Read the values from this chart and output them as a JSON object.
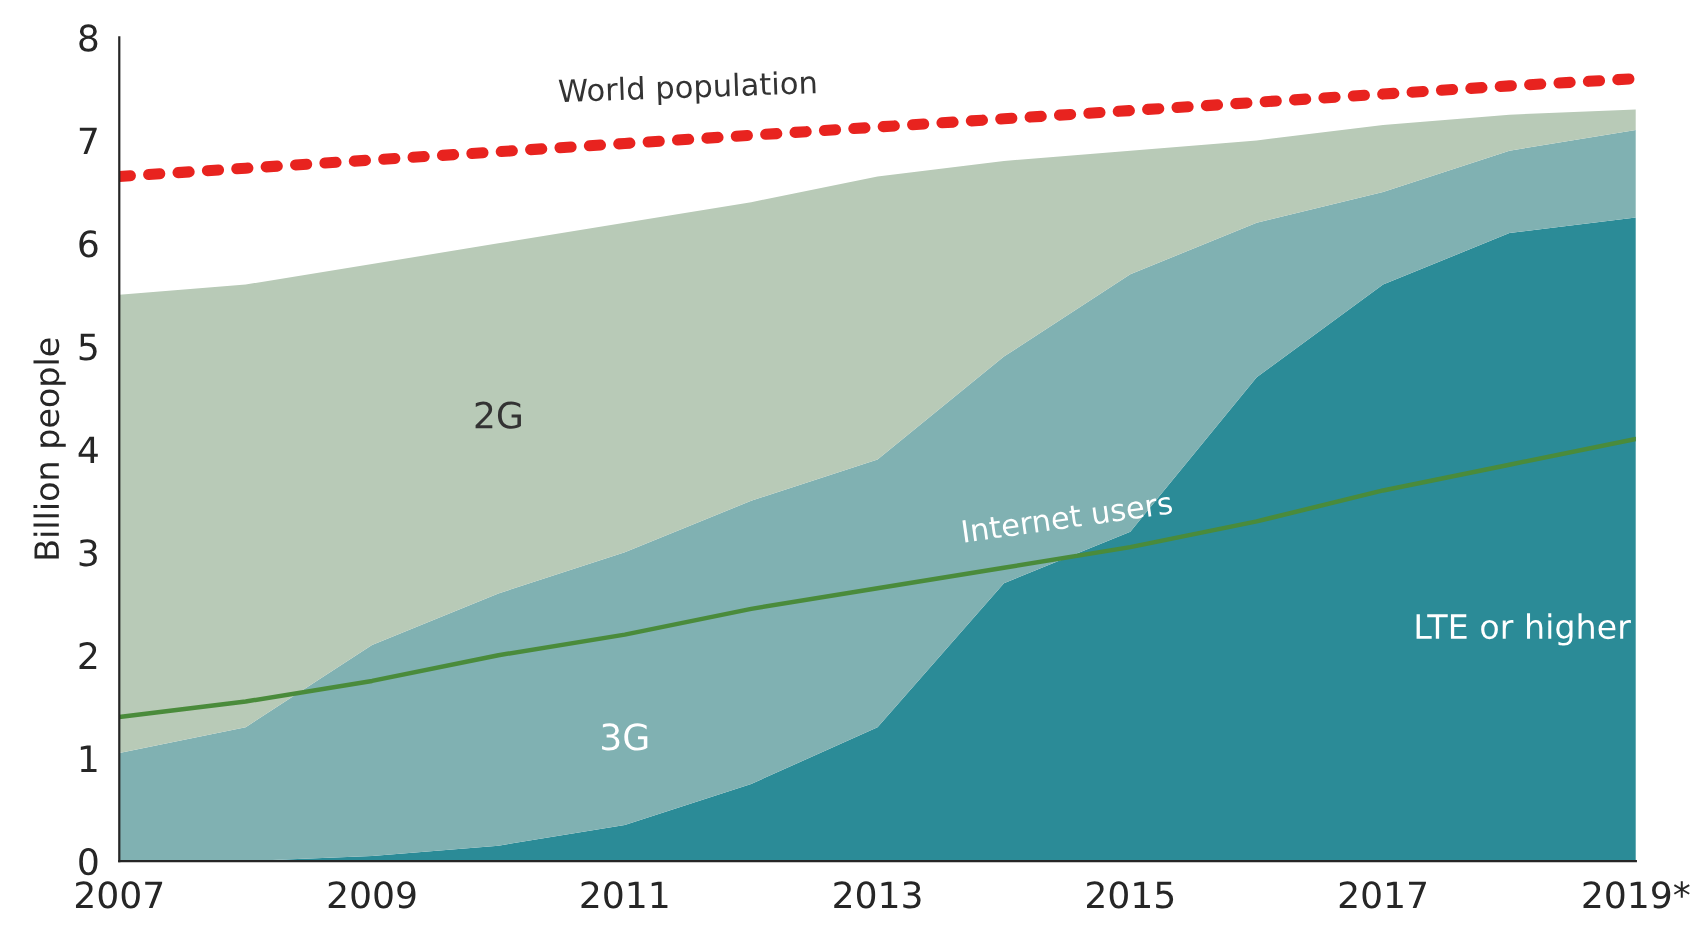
{
  "chart_data": {
    "type": "area",
    "stacked": true,
    "ylabel": "Billion people",
    "x": [
      2007,
      2008,
      2009,
      2010,
      2011,
      2012,
      2013,
      2014,
      2015,
      2016,
      2017,
      2018,
      2019
    ],
    "xlim": [
      2007,
      2019
    ],
    "xticks": [
      2007,
      2009,
      2011,
      2013,
      2015,
      2017,
      {
        "value": 2019,
        "label": "2019*"
      }
    ],
    "ylim": [
      0,
      8
    ],
    "yticks": [
      0,
      1,
      2,
      3,
      4,
      5,
      6,
      7,
      8
    ],
    "series": [
      {
        "name": "LTE or higher",
        "color": "#2b8b97",
        "values": [
          0,
          0,
          0.05,
          0.15,
          0.35,
          0.75,
          1.3,
          2.7,
          3.2,
          4.7,
          5.6,
          6.1,
          6.25
        ]
      },
      {
        "name": "3G",
        "color": "#80b1b2",
        "values": [
          1.05,
          1.3,
          2.05,
          2.45,
          2.65,
          2.75,
          2.6,
          2.2,
          2.5,
          1.5,
          0.9,
          0.8,
          0.85
        ]
      },
      {
        "name": "2G",
        "color": "#b8cab7",
        "values": [
          4.45,
          4.3,
          3.7,
          3.4,
          3.2,
          2.9,
          2.75,
          1.9,
          1.2,
          0.8,
          0.65,
          0.35,
          0.2
        ]
      },
      {
        "name": "Internet users",
        "type": "line",
        "color": "#4a8b3b",
        "line_style": "solid",
        "values": [
          1.4,
          1.55,
          1.75,
          2.0,
          2.2,
          2.45,
          2.65,
          2.85,
          3.05,
          3.3,
          3.6,
          3.85,
          4.1
        ]
      },
      {
        "name": "World population",
        "type": "line",
        "color": "#e8231f",
        "line_style": "dotted",
        "values": [
          6.65,
          6.73,
          6.81,
          6.89,
          6.97,
          7.05,
          7.13,
          7.21,
          7.29,
          7.37,
          7.45,
          7.53,
          7.6
        ]
      }
    ]
  }
}
